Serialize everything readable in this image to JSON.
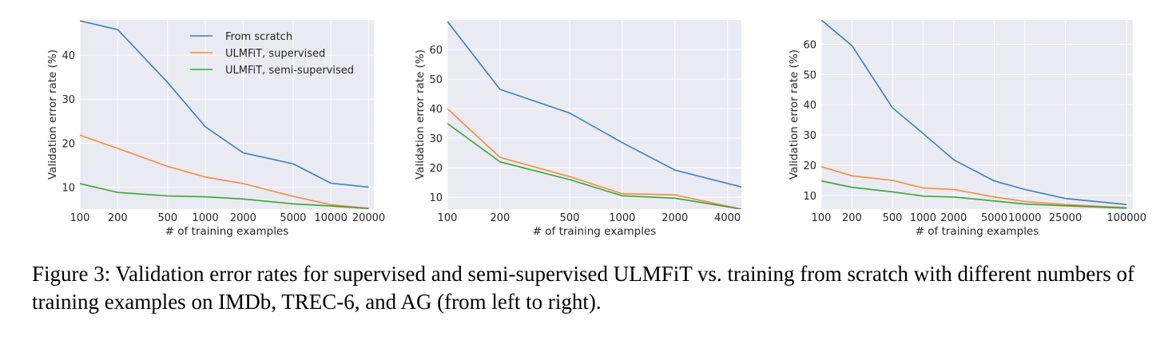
{
  "colors": {
    "from_scratch": "#3a7fbd",
    "ulmfit_supervised": "#f28c38",
    "ulmfit_semi_supervised": "#3aa336",
    "plot_background": "#eaeaf2"
  },
  "caption": "Figure 3: Validation error rates for supervised and semi-supervised ULMFiT vs. training from scratch with different numbers of training examples on IMDb, TREC-6, and AG (from left to right).",
  "chart_data": [
    {
      "type": "line",
      "x_scale": "log",
      "xlabel": "# of training examples",
      "ylabel": "Validation error rate (%)",
      "xlim": [
        100,
        22000
      ],
      "ylim": [
        5,
        48
      ],
      "x_ticks": [
        100,
        200,
        500,
        1000,
        2000,
        5000,
        10000,
        20000
      ],
      "y_ticks": [
        10,
        20,
        30,
        40
      ],
      "grid": true,
      "legend": "top-right",
      "series": [
        {
          "name": "From scratch",
          "color_key": "from_scratch",
          "x": [
            100,
            200,
            500,
            1000,
            2000,
            5000,
            10000,
            20000
          ],
          "y": [
            47.8,
            45.8,
            33.8,
            23.7,
            17.8,
            15.3,
            10.9,
            10.0
          ]
        },
        {
          "name": "ULMFiT, supervised",
          "color_key": "ulmfit_supervised",
          "x": [
            100,
            200,
            500,
            1000,
            2000,
            5000,
            10000,
            20000
          ],
          "y": [
            21.8,
            18.8,
            14.7,
            12.3,
            10.8,
            7.9,
            6.0,
            5.2
          ]
        },
        {
          "name": "ULMFiT, semi-supervised",
          "color_key": "ulmfit_semi_supervised",
          "x": [
            100,
            200,
            500,
            1000,
            2000,
            5000,
            10000,
            20000
          ],
          "y": [
            10.8,
            8.8,
            8.0,
            7.8,
            7.3,
            6.2,
            5.7,
            5.1
          ]
        }
      ]
    },
    {
      "type": "line",
      "x_scale": "log",
      "xlabel": "# of training examples",
      "ylabel": "Validation error rate (%)",
      "xlim": [
        100,
        4800
      ],
      "ylim": [
        6,
        70
      ],
      "x_ticks": [
        100,
        200,
        500,
        1000,
        2000,
        4000
      ],
      "y_ticks": [
        10,
        20,
        30,
        40,
        50,
        60
      ],
      "grid": true,
      "legend": "none",
      "series": [
        {
          "name": "From scratch",
          "color_key": "from_scratch",
          "x": [
            100,
            200,
            500,
            1000,
            2000,
            4800
          ],
          "y": [
            69.5,
            46.5,
            38.5,
            28.5,
            19.2,
            13.5
          ]
        },
        {
          "name": "ULMFiT, supervised",
          "color_key": "ulmfit_supervised",
          "x": [
            100,
            200,
            500,
            1000,
            2000,
            4800
          ],
          "y": [
            40.0,
            23.5,
            17.0,
            11.2,
            10.8,
            6.0
          ]
        },
        {
          "name": "ULMFiT, semi-supervised",
          "color_key": "ulmfit_semi_supervised",
          "x": [
            100,
            200,
            500,
            1000,
            2000,
            4800
          ],
          "y": [
            35.0,
            22.0,
            16.0,
            10.5,
            9.7,
            6.0
          ]
        }
      ]
    },
    {
      "type": "line",
      "x_scale": "log",
      "xlabel": "# of training examples",
      "ylabel": "Validation error rate (%)",
      "xlim": [
        100,
        115000
      ],
      "ylim": [
        5.5,
        68
      ],
      "x_ticks": [
        100,
        200,
        500,
        1000,
        2000,
        5000,
        10000,
        25000,
        100000
      ],
      "x_tick_labels": [
        "100",
        "200",
        "500",
        "1000",
        "2000",
        "5000",
        "10000",
        "25000",
        "100000"
      ],
      "y_ticks": [
        10,
        20,
        30,
        40,
        50,
        60
      ],
      "grid": true,
      "legend": "none",
      "series": [
        {
          "name": "From scratch",
          "color_key": "from_scratch",
          "x": [
            100,
            200,
            500,
            1000,
            2000,
            5000,
            10000,
            25000,
            100000
          ],
          "y": [
            68.0,
            59.5,
            39.0,
            30.5,
            21.8,
            14.8,
            12.0,
            9.0,
            7.0
          ]
        },
        {
          "name": "ULMFiT, supervised",
          "color_key": "ulmfit_supervised",
          "x": [
            100,
            200,
            500,
            1000,
            2000,
            5000,
            10000,
            25000,
            100000
          ],
          "y": [
            19.5,
            16.5,
            15.0,
            12.5,
            12.0,
            9.5,
            8.0,
            7.0,
            6.0
          ]
        },
        {
          "name": "ULMFiT, semi-supervised",
          "color_key": "ulmfit_semi_supervised",
          "x": [
            100,
            200,
            500,
            1000,
            2000,
            5000,
            10000,
            25000,
            100000
          ],
          "y": [
            14.8,
            12.7,
            11.2,
            9.8,
            9.5,
            8.2,
            7.2,
            6.6,
            5.8
          ]
        }
      ]
    }
  ]
}
